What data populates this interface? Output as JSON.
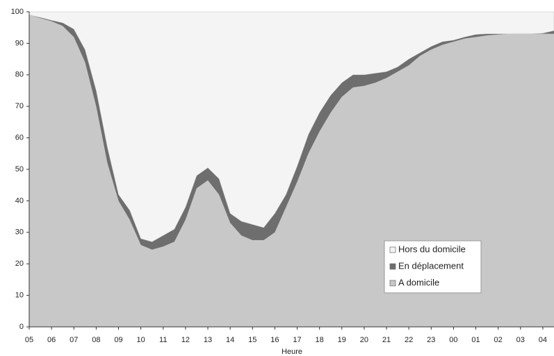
{
  "chart_data": {
    "type": "stacked_area",
    "x_label": "Heure",
    "categories": [
      "05",
      null,
      "06",
      null,
      "07",
      null,
      "08",
      null,
      "09",
      null,
      "10",
      null,
      "11",
      null,
      "12",
      null,
      "13",
      null,
      "14",
      null,
      "15",
      null,
      "16",
      null,
      "17",
      null,
      "18",
      null,
      "19",
      null,
      "20",
      null,
      "21",
      null,
      "22",
      null,
      "23",
      null,
      "00",
      null,
      "01",
      null,
      "02",
      null,
      "03",
      null,
      "04",
      null
    ],
    "series": [
      {
        "name": "Hors du domicile",
        "color": "#f4f4f4",
        "values": [
          1,
          1.8,
          2.7,
          3.5,
          5.5,
          12,
          25,
          43,
          58,
          63,
          72,
          73,
          71,
          69,
          62,
          52,
          49.5,
          53,
          64,
          66.5,
          67.5,
          68.5,
          64,
          58,
          49,
          39,
          32,
          26.5,
          22.5,
          20,
          20,
          19.5,
          19,
          17.5,
          15,
          13,
          11,
          9.5,
          9,
          8,
          7.2,
          7,
          7,
          7,
          7,
          7,
          6.8,
          6
        ]
      },
      {
        "name": "En déplacement",
        "color": "#6e6e6e",
        "values": [
          0,
          0.2,
          0.3,
          1,
          2.5,
          4,
          5,
          5,
          2,
          3,
          2,
          2.5,
          3.5,
          4,
          4,
          4,
          4,
          5,
          3,
          4.5,
          5,
          4,
          6,
          4,
          5,
          6,
          6,
          5.5,
          4.5,
          4,
          3.5,
          3,
          2,
          1.5,
          2,
          1,
          1,
          1,
          0.5,
          0.5,
          0.8,
          0.5,
          0.2,
          0,
          0,
          0,
          0.2,
          1
        ]
      },
      {
        "name": "A domicile",
        "color": "#c8c8c8",
        "values": [
          99,
          98,
          97,
          95.5,
          92,
          84,
          70,
          52,
          40,
          34,
          26,
          24.5,
          25.5,
          27,
          34,
          44,
          46.5,
          42,
          33,
          29,
          27.5,
          27.5,
          30,
          38,
          46,
          55,
          62,
          68,
          73,
          76,
          76.5,
          77.5,
          79,
          81,
          83,
          86,
          88,
          89.5,
          90.5,
          91.5,
          92,
          92.5,
          92.8,
          93,
          93,
          93,
          93,
          93
        ]
      }
    ],
    "ylim": [
      0,
      100
    ],
    "yticks": [
      0,
      10,
      20,
      30,
      40,
      50,
      60,
      70,
      80,
      90,
      100
    ],
    "legend": "lower right",
    "grid": false
  }
}
